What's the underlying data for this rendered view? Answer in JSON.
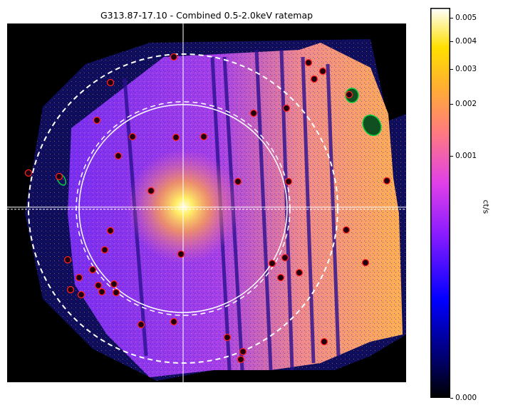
{
  "chart_data": {
    "type": "heatmap",
    "title": "G313.87-17.10 - Combined 0.5-2.0keV ratemap",
    "colormap": "gnuplot2",
    "colorbar": {
      "label": "ct/s",
      "scale": "log",
      "tick_labels": [
        "0.005",
        "0.004",
        "0.003",
        "0.002",
        "0.001",
        "0.000"
      ],
      "tick_values": [
        0.005,
        0.004,
        0.003,
        0.002,
        0.001,
        0.0
      ]
    },
    "axes_visible": false,
    "overlays": [
      "crosshair",
      "white solid circle",
      "white dashed circles",
      "red source regions",
      "green extended source regions"
    ]
  }
}
